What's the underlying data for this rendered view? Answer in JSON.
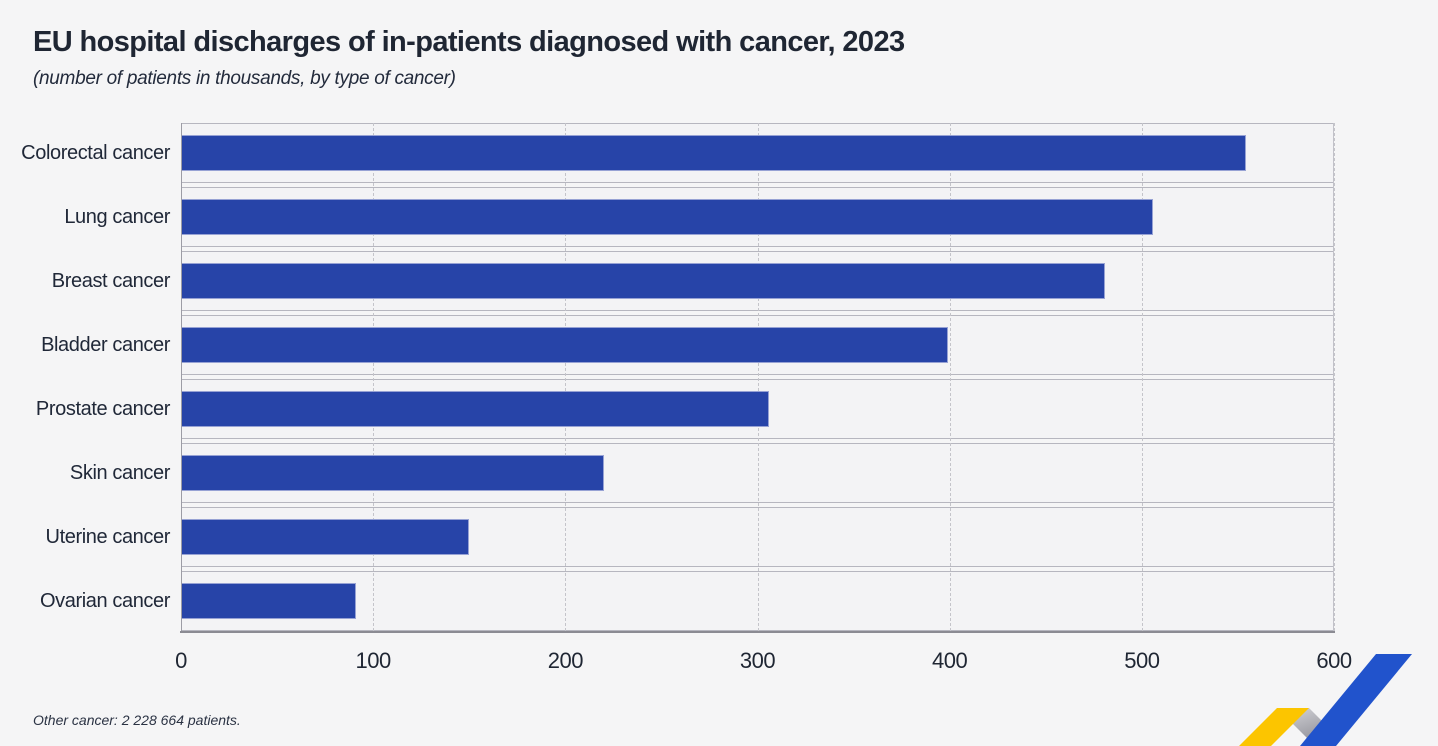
{
  "header": {
    "title": "EU hospital discharges of in-patients diagnosed with cancer, 2023",
    "subtitle": "(number of patients in thousands, by type of cancer)"
  },
  "footnote": "Other cancer: 2 228 664 patients.",
  "chart_data": {
    "type": "bar",
    "orientation": "horizontal",
    "title": "EU hospital discharges of in-patients diagnosed with cancer, 2023",
    "subtitle": "(number of patients in thousands, by type of cancer)",
    "categories": [
      "Colorectal cancer",
      "Lung cancer",
      "Breast cancer",
      "Bladder cancer",
      "Prostate cancer",
      "Skin cancer",
      "Uterine cancer",
      "Ovarian cancer"
    ],
    "values": [
      554,
      506,
      481,
      399,
      306,
      220,
      150,
      91
    ],
    "xlabel": "",
    "ylabel": "",
    "xlim": [
      0,
      600
    ],
    "xticks": [
      0,
      100,
      200,
      300,
      400,
      500,
      600
    ],
    "grid": "vertical-dashed",
    "legend": "none",
    "bar_color": "#2744a8"
  },
  "colors": {
    "page_bg": "#f5f5f6",
    "panel_bg": "#f3f3f5",
    "bar": "#2744a8",
    "text": "#1f2633",
    "grid_line": "#c4c4ca",
    "logo_blue": "#2153cc",
    "logo_yellow": "#fcc500",
    "logo_gray_light": "#d2d2d6",
    "logo_gray_dark": "#94949c"
  }
}
